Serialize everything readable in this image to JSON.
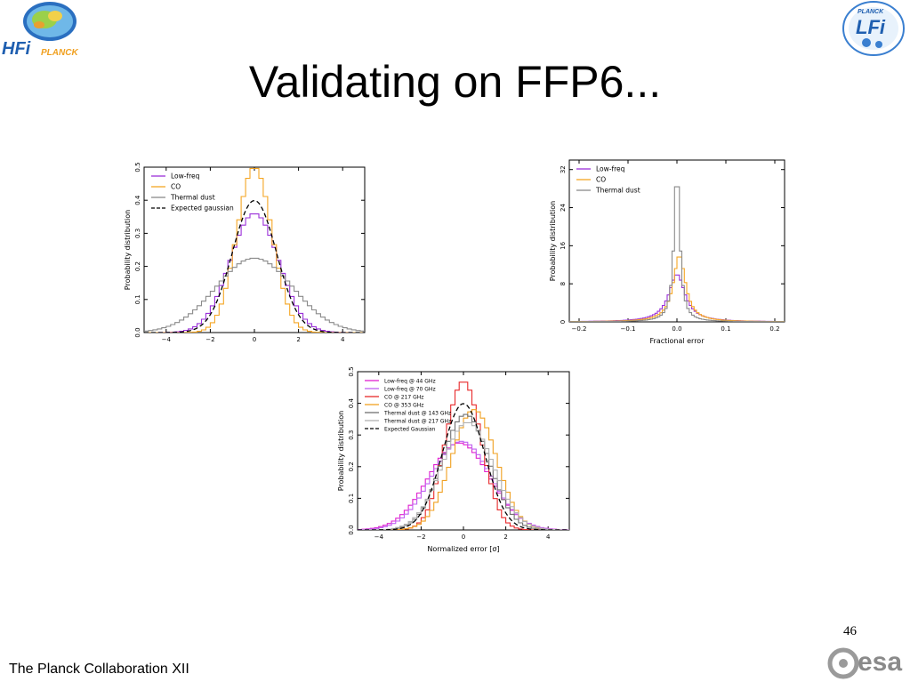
{
  "slide": {
    "title": "Validating on FFP6...",
    "footer_credit": "The Planck Collaboration XII",
    "page_number": "46",
    "logos": {
      "top_left": {
        "text": "HFi",
        "subtext": "PLANCK"
      },
      "top_right": {
        "text": "LFi",
        "subtext": "PLANCK"
      },
      "bottom_right": {
        "text": "esa"
      }
    }
  },
  "colors": {
    "purple": "#9b30d9",
    "orange": "#f5a623",
    "gray": "#8a8a8a",
    "black": "#000000",
    "magenta": "#e020d0",
    "violet": "#c060f0",
    "red": "#e8282a",
    "gold": "#f0a020",
    "dark_gray": "#707070",
    "light_gray": "#b0b0b0"
  },
  "chart_data": [
    {
      "type": "line",
      "xlabel": "",
      "ylabel": "Probability distribution",
      "xlim": [
        -5,
        5
      ],
      "ylim": [
        0,
        0.5
      ],
      "xticks": [
        "−4",
        "−2",
        "0",
        "2",
        "4"
      ],
      "yticks": [
        "0.0",
        "0.1",
        "0.2",
        "0.3",
        "0.4",
        "0.5"
      ],
      "legend_position": "top-left",
      "series": [
        {
          "name": "Low-freq",
          "color_key": "purple",
          "style": "step",
          "sigma": 1.1,
          "mu": 0,
          "amp": 0.36
        },
        {
          "name": "CO",
          "color_key": "orange",
          "style": "step",
          "sigma": 0.8,
          "mu": 0,
          "amp": 0.5
        },
        {
          "name": "Thermal dust",
          "color_key": "gray",
          "style": "step",
          "sigma": 1.75,
          "mu": 0,
          "amp": 0.225
        },
        {
          "name": "Expected gaussian",
          "color_key": "black",
          "style": "dashed",
          "sigma": 1.0,
          "mu": 0,
          "amp": 0.399
        }
      ]
    },
    {
      "type": "line",
      "xlabel": "Fractional error",
      "ylabel": "Probability distribution",
      "xlim": [
        -0.22,
        0.22
      ],
      "ylim": [
        0,
        34
      ],
      "xticks": [
        "−0.2",
        "−0.1",
        "0.0",
        "0.1",
        "0.2"
      ],
      "yticks": [
        "0",
        "8",
        "16",
        "24",
        "32"
      ],
      "legend_position": "top-left",
      "series": [
        {
          "name": "Low-freq",
          "color_key": "purple",
          "style": "step",
          "peak": 0,
          "amp": 10,
          "width": 0.02
        },
        {
          "name": "CO",
          "color_key": "orange",
          "style": "step",
          "peak": 0.005,
          "amp": 14,
          "width": 0.015
        },
        {
          "name": "Thermal dust",
          "color_key": "gray",
          "style": "step",
          "peak": 0,
          "amp": 32,
          "width": 0.007
        }
      ]
    },
    {
      "type": "line",
      "xlabel": "Normalized error [σ]",
      "ylabel": "Probability distribution",
      "xlim": [
        -5,
        5
      ],
      "ylim": [
        0,
        0.5
      ],
      "xticks": [
        "−4",
        "−2",
        "0",
        "2",
        "4"
      ],
      "yticks": [
        "0.0",
        "0.1",
        "0.2",
        "0.3",
        "0.4",
        "0.5"
      ],
      "legend_position": "top-left",
      "series": [
        {
          "name": "Low-freq @ 44 GHz",
          "color_key": "magenta",
          "style": "step",
          "sigma": 1.45,
          "mu": -0.2,
          "amp": 0.275
        },
        {
          "name": "Low-freq @ 70 GHz",
          "color_key": "violet",
          "style": "step",
          "sigma": 1.4,
          "mu": -0.1,
          "amp": 0.28
        },
        {
          "name": "CO @ 217 GHz",
          "color_key": "red",
          "style": "step",
          "sigma": 0.85,
          "mu": 0,
          "amp": 0.47
        },
        {
          "name": "CO @ 353 GHz",
          "color_key": "gold",
          "style": "step",
          "sigma": 1.05,
          "mu": 0.5,
          "amp": 0.38
        },
        {
          "name": "Thermal dust @ 143 GHz",
          "color_key": "dark_gray",
          "style": "step",
          "sigma": 1.1,
          "mu": 0.1,
          "amp": 0.365
        },
        {
          "name": "Thermal dust @ 217 GHz",
          "color_key": "light_gray",
          "style": "step",
          "sigma": 1.2,
          "mu": 0.2,
          "amp": 0.34
        },
        {
          "name": "Expected Gaussian",
          "color_key": "black",
          "style": "dashed",
          "sigma": 1.0,
          "mu": 0,
          "amp": 0.399
        }
      ]
    }
  ]
}
